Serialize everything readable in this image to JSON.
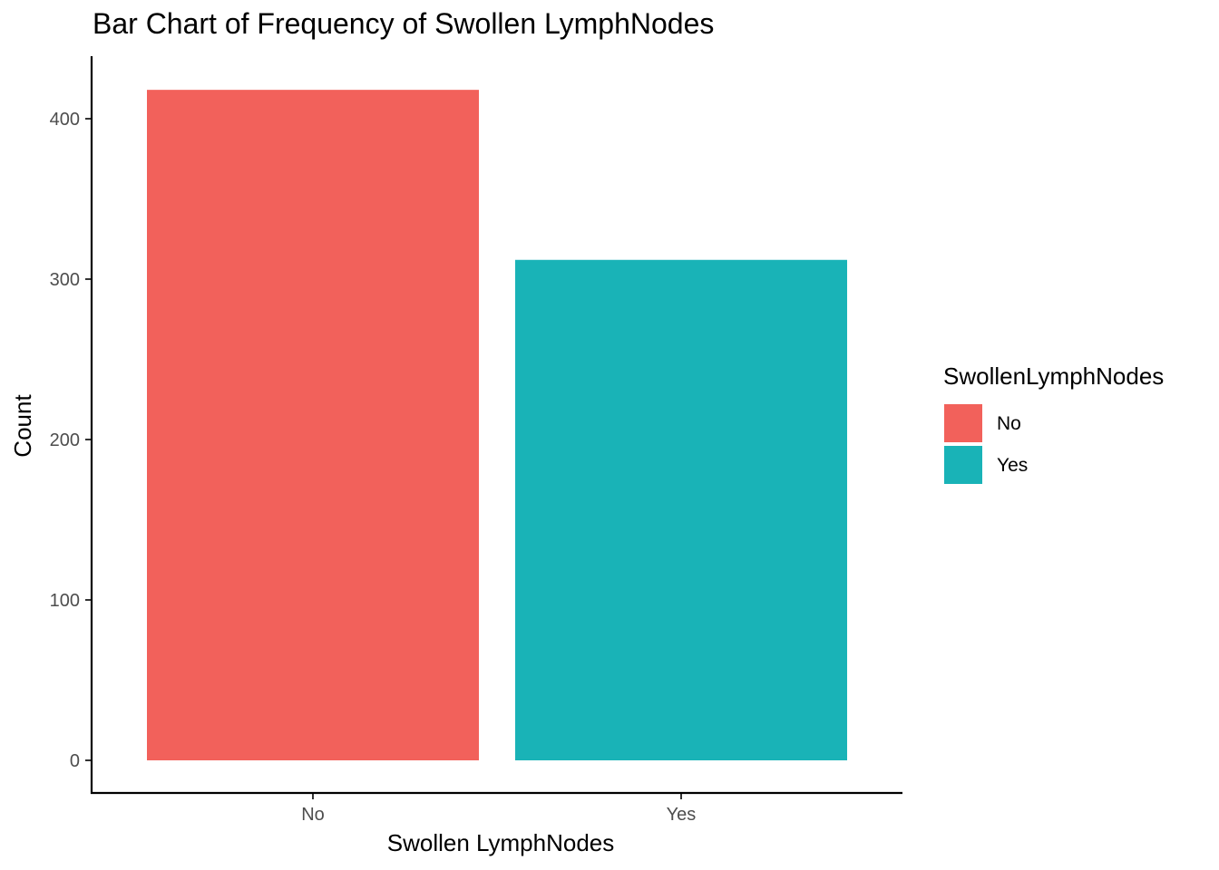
{
  "chart_data": {
    "type": "bar",
    "title": "Bar Chart of Frequency of Swollen LymphNodes",
    "xlabel": "Swollen LymphNodes",
    "ylabel": "Count",
    "categories": [
      "No",
      "Yes"
    ],
    "values": [
      418,
      312
    ],
    "colors": [
      "#F2615B",
      "#19B3B7"
    ],
    "ylim": [
      0,
      440
    ],
    "yticks": [
      0,
      100,
      200,
      300,
      400
    ],
    "grid": false,
    "legend": {
      "title": "SwollenLymphNodes",
      "position": "right",
      "entries": [
        {
          "label": "No",
          "color": "#F2615B"
        },
        {
          "label": "Yes",
          "color": "#19B3B7"
        }
      ]
    }
  }
}
